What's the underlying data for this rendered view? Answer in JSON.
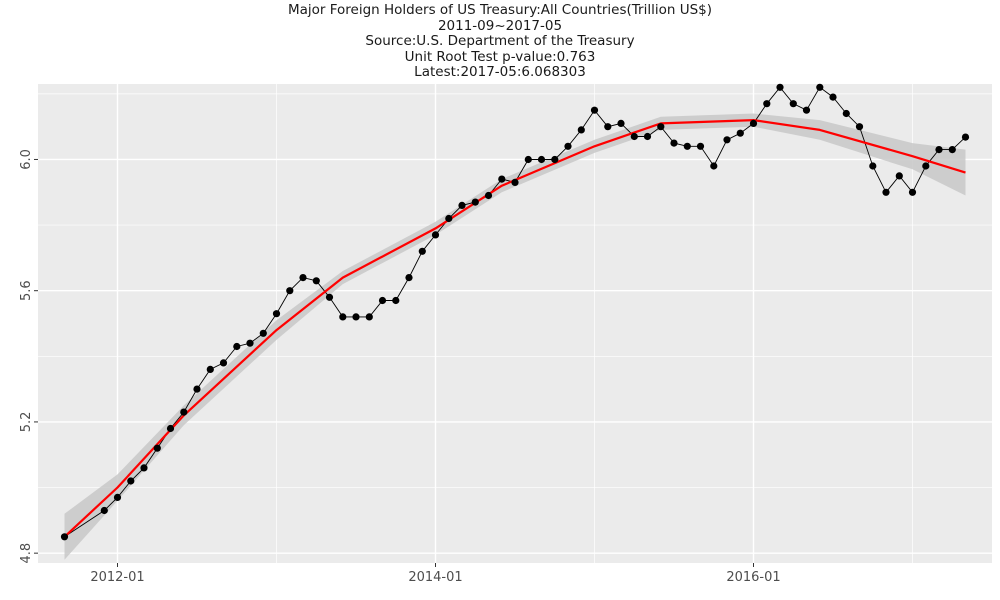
{
  "titles": [
    "Major Foreign Holders of US Treasury:All Countries(Trillion US$)",
    "2011-09~2017-05",
    "Source:U.S. Department of the Treasury",
    "Unit Root Test p-value:0.763",
    "Latest:2017-05:6.068303"
  ],
  "colors": {
    "panel": "#ebebeb",
    "grid": "#ffffff",
    "points": "#000000",
    "smooth_line": "#ff0000",
    "confidence_band": "#c8c8c8"
  },
  "chart_data": {
    "type": "line",
    "title": "Major Foreign Holders of US Treasury:All Countries(Trillion US$)",
    "xlabel": "",
    "ylabel": "",
    "x_ticks": [
      "2012-01",
      "2014-01",
      "2016-01"
    ],
    "y_ticks": [
      "4.8",
      "5.2",
      "5.6",
      "6.0"
    ],
    "ylim": [
      4.77,
      6.23
    ],
    "xlim": [
      "2011-07",
      "2017-07"
    ],
    "grid": true,
    "legend": "none",
    "series": [
      {
        "x": [
          "2011-09",
          "2011-12",
          "2012-01",
          "2012-02",
          "2012-03",
          "2012-04",
          "2012-05",
          "2012-06",
          "2012-07",
          "2012-08",
          "2012-09",
          "2012-10",
          "2012-11",
          "2012-12",
          "2013-01",
          "2013-02",
          "2013-03",
          "2013-04",
          "2013-05",
          "2013-06",
          "2013-07",
          "2013-08",
          "2013-09",
          "2013-10",
          "2013-11",
          "2013-12",
          "2014-01",
          "2014-02",
          "2014-03",
          "2014-04",
          "2014-05",
          "2014-06",
          "2014-07",
          "2014-08",
          "2014-09",
          "2014-10",
          "2014-11",
          "2014-12",
          "2015-01",
          "2015-02",
          "2015-03",
          "2015-04",
          "2015-05",
          "2015-06",
          "2015-07",
          "2015-08",
          "2015-09",
          "2015-10",
          "2015-11",
          "2015-12",
          "2016-01",
          "2016-02",
          "2016-03",
          "2016-04",
          "2016-05",
          "2016-06",
          "2016-07",
          "2016-08",
          "2016-09",
          "2016-10",
          "2016-11",
          "2016-12",
          "2017-01",
          "2017-02",
          "2017-03",
          "2017-04",
          "2017-05"
        ],
        "values": [
          4.85,
          4.93,
          4.97,
          5.02,
          5.06,
          5.12,
          5.18,
          5.23,
          5.3,
          5.36,
          5.38,
          5.43,
          5.44,
          5.47,
          5.53,
          5.6,
          5.64,
          5.63,
          5.58,
          5.52,
          5.52,
          5.52,
          5.57,
          5.57,
          5.64,
          5.72,
          5.77,
          5.82,
          5.86,
          5.87,
          5.89,
          5.94,
          5.93,
          6.0,
          6.0,
          6.0,
          6.04,
          6.09,
          6.15,
          6.1,
          6.11,
          6.07,
          6.07,
          6.1,
          6.05,
          6.04,
          6.04,
          5.98,
          6.06,
          6.08,
          6.11,
          6.17,
          6.22,
          6.17,
          6.15,
          6.22,
          6.19,
          6.14,
          6.1,
          5.98,
          5.9,
          5.95,
          5.9,
          5.98,
          6.03,
          6.03,
          6.068
        ]
      },
      {
        "x": [
          "2011-09",
          "2012-01",
          "2012-06",
          "2013-01",
          "2013-06",
          "2014-01",
          "2014-06",
          "2015-01",
          "2015-06",
          "2016-01",
          "2016-06",
          "2017-01",
          "2017-05"
        ],
        "values": [
          4.85,
          5.0,
          5.22,
          5.48,
          5.64,
          5.79,
          5.92,
          6.04,
          6.11,
          6.12,
          6.09,
          6.01,
          5.96
        ],
        "band_lower": [
          4.78,
          4.96,
          5.19,
          5.45,
          5.62,
          5.77,
          5.9,
          6.02,
          6.09,
          6.1,
          6.06,
          5.97,
          5.89
        ],
        "band_upper": [
          4.92,
          5.04,
          5.25,
          5.51,
          5.66,
          5.81,
          5.94,
          6.06,
          6.13,
          6.14,
          6.12,
          6.05,
          6.03
        ]
      }
    ]
  }
}
